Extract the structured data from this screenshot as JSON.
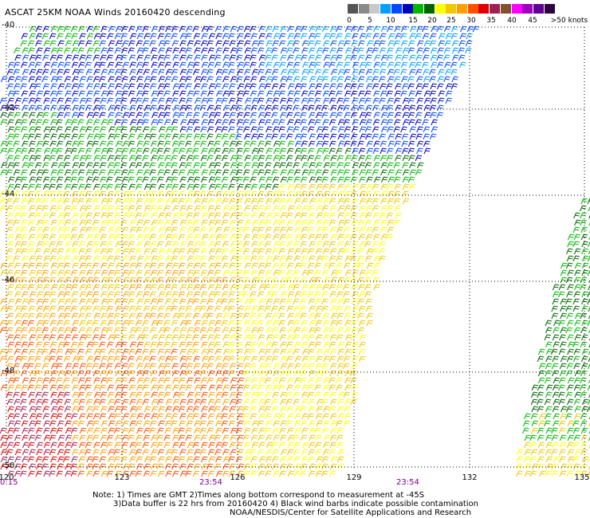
{
  "title": "ASCAT 25KM NOAA Winds 20160420 descending",
  "legend": {
    "colors": [
      "#555555",
      "#8a8a8a",
      "#c8c8c8",
      "#00a0ff",
      "#0048ff",
      "#0000c0",
      "#00b800",
      "#006400",
      "#ffff00",
      "#f0c800",
      "#ffa000",
      "#ff5000",
      "#e00000",
      "#a02050",
      "#805030",
      "#ff00ff",
      "#a000c0",
      "#600090",
      "#300040"
    ],
    "ticks": [
      "0",
      "5",
      "10",
      "15",
      "20",
      "25",
      "30",
      "35",
      "40",
      "45",
      ">50 knots"
    ]
  },
  "axes": {
    "lat_labels": [
      "-40",
      "-42",
      "-44",
      "-46",
      "-48",
      "-50"
    ],
    "lon_labels": [
      "120",
      "123",
      "126",
      "129",
      "132",
      "135"
    ]
  },
  "times": [
    "0:15",
    "23:54",
    "23:54"
  ],
  "notes": {
    "line1": "Note: 1) Times are GMT 2)Times along bottom correspond to measurement at -45S",
    "line2": "3)Data buffer is 22 hrs from 20160420 4) Black wind barbs indicate possible contamination",
    "line3": "NOAA/NESDIS/Center for Satellite Applications and Research"
  }
}
